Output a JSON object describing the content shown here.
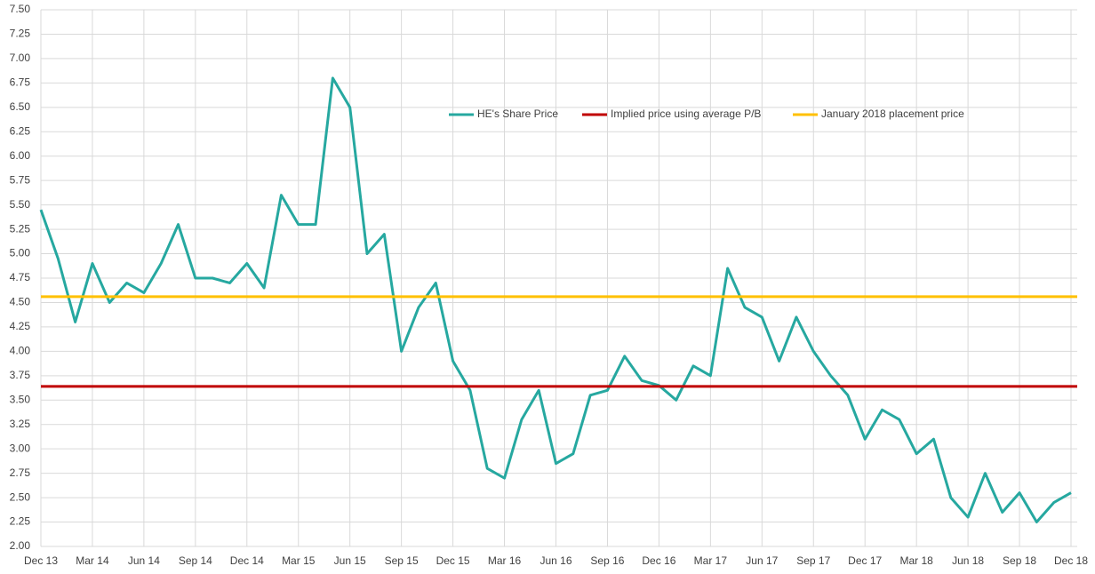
{
  "chart_data": {
    "type": "line",
    "x": [
      "Dec 13",
      null,
      null,
      "Mar 14",
      null,
      null,
      "Jun 14",
      null,
      null,
      "Sep 14",
      null,
      null,
      "Dec 14",
      null,
      null,
      "Mar 15",
      null,
      null,
      "Jun 15",
      null,
      null,
      "Sep 15",
      null,
      null,
      "Dec 15",
      null,
      null,
      "Mar 16",
      null,
      null,
      "Jun 16",
      null,
      null,
      "Sep 16",
      null,
      null,
      "Dec 16",
      null,
      null,
      "Mar 17",
      null,
      null,
      "Jun 17",
      null,
      null,
      "Sep 17",
      null,
      null,
      "Dec 17",
      null,
      null,
      "Mar 18",
      null,
      null,
      "Jun 18",
      null,
      null,
      "Sep 18",
      null,
      null,
      "Dec 18"
    ],
    "series": [
      {
        "name": "HE's Share Price",
        "color": "#26a8a0",
        "values": [
          5.45,
          4.95,
          4.3,
          4.9,
          4.5,
          4.7,
          4.6,
          4.9,
          5.3,
          4.75,
          4.75,
          4.7,
          4.9,
          4.65,
          5.6,
          5.3,
          5.3,
          6.8,
          6.5,
          5.0,
          5.2,
          4.0,
          4.45,
          4.7,
          3.9,
          3.6,
          2.8,
          2.7,
          3.3,
          3.6,
          2.85,
          2.95,
          3.55,
          3.6,
          3.95,
          3.7,
          3.65,
          3.5,
          3.85,
          3.75,
          4.85,
          4.45,
          4.35,
          3.9,
          4.35,
          4.0,
          3.75,
          3.55,
          3.1,
          3.4,
          3.3,
          2.95,
          3.1,
          2.5,
          2.3,
          2.75,
          2.35,
          2.55,
          2.25,
          2.45,
          2.55
        ]
      },
      {
        "name": "Implied price using average P/B",
        "color": "#c00000",
        "value": 3.64
      },
      {
        "name": "January 2018 placement price",
        "color": "#ffc000",
        "value": 4.56
      }
    ],
    "ylim": [
      2,
      7.5
    ],
    "yticks": [
      {
        "value": 2,
        "label": "2.00"
      },
      2.25,
      {
        "value": 2.5,
        "label": "2.50"
      },
      2.75,
      {
        "value": 3,
        "label": "3.00"
      },
      3.25,
      {
        "value": 3.5,
        "label": "3.50"
      },
      3.75,
      {
        "value": 4,
        "label": "4.00"
      },
      4.25,
      {
        "value": 4.5,
        "label": "4.50"
      },
      4.75,
      {
        "value": 5,
        "label": "5.00"
      },
      5.25,
      {
        "value": 5.5,
        "label": "5.50"
      },
      5.75,
      {
        "value": 6,
        "label": "6.00"
      },
      6.25,
      {
        "value": 6.5,
        "label": "6.50"
      },
      6.75,
      {
        "value": 7,
        "label": "7.00"
      },
      7.25,
      {
        "value": 7.5,
        "label": "7.50"
      }
    ],
    "grid": true
  }
}
